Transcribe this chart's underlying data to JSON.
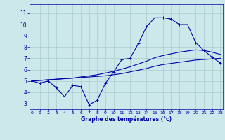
{
  "title": "Graphe des températures (°c)",
  "bg_color": "#cce8ea",
  "grid_color": "#aacccc",
  "line_color": "#0000aa",
  "x_ticks": [
    0,
    1,
    2,
    3,
    4,
    5,
    6,
    7,
    8,
    9,
    10,
    11,
    12,
    13,
    14,
    15,
    16,
    17,
    18,
    19,
    20,
    21,
    22,
    23
  ],
  "y_ticks": [
    3,
    4,
    5,
    6,
    7,
    8,
    9,
    10,
    11
  ],
  "ylim": [
    2.5,
    11.8
  ],
  "xlim": [
    -0.3,
    23.3
  ],
  "hours": [
    0,
    1,
    2,
    3,
    4,
    5,
    6,
    7,
    8,
    9,
    10,
    11,
    12,
    13,
    14,
    15,
    16,
    17,
    18,
    19,
    20,
    21,
    22,
    23
  ],
  "curve1": [
    5.0,
    4.8,
    5.0,
    4.4,
    3.6,
    4.6,
    4.5,
    2.9,
    3.3,
    4.8,
    5.8,
    6.9,
    7.0,
    8.3,
    9.8,
    10.6,
    10.6,
    10.5,
    10.0,
    10.0,
    8.4,
    7.7,
    7.1,
    6.6
  ],
  "curve2": [
    5.0,
    5.05,
    5.1,
    5.15,
    5.2,
    5.25,
    5.3,
    5.35,
    5.4,
    5.45,
    5.55,
    5.65,
    5.8,
    5.95,
    6.1,
    6.3,
    6.45,
    6.55,
    6.65,
    6.75,
    6.85,
    6.9,
    6.95,
    7.0
  ],
  "curve3": [
    5.0,
    5.05,
    5.1,
    5.15,
    5.2,
    5.25,
    5.35,
    5.45,
    5.55,
    5.7,
    5.85,
    6.05,
    6.25,
    6.5,
    6.75,
    7.05,
    7.25,
    7.4,
    7.55,
    7.65,
    7.75,
    7.7,
    7.55,
    7.35
  ]
}
